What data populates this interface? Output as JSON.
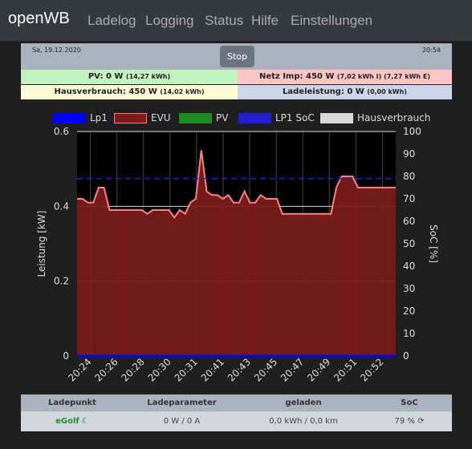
{
  "navbar": {
    "brand": "openWB",
    "items": [
      "Ladelog",
      "Logging",
      "Status",
      "Hilfe",
      "Einstellungen"
    ]
  },
  "header": {
    "date": "Sa, 19.12.2020",
    "time": "20:54",
    "stop_label": "Stop"
  },
  "status": {
    "pv": "PV: 0 W",
    "pv_detail": "(14,27 kWh)",
    "netz": "Netz Imp: 450 W",
    "netz_detail": "(7,02 kWh I) (7,27 kWh E)",
    "haus": "Hausverbrauch: 450 W",
    "haus_detail": "(14,02 kWh)",
    "lade": "Ladeleistung: 0 W",
    "lade_detail": "(0,00 kWh)"
  },
  "colors": {
    "pv_bg": "#c3f2c1",
    "netz_bg": "#ffc5c5",
    "haus_bg": "#fffbd9",
    "lade_bg": "#cdd5e9",
    "evu": "#7d1c1c",
    "evu_line": "#ff8080",
    "lp1": "#0000ff",
    "pv": "#1f8b24",
    "soc": "#2020d0",
    "haus": "#d8d8d8"
  },
  "legend": [
    {
      "label": "Lp1",
      "key": "lp1"
    },
    {
      "label": "EVU",
      "key": "evu"
    },
    {
      "label": "PV",
      "key": "pv"
    },
    {
      "label": "LP1 SoC",
      "key": "soc"
    },
    {
      "label": "Hausverbrauch",
      "key": "haus"
    }
  ],
  "chart_data": {
    "type": "area",
    "ylabel": "Leistung [kW]",
    "y2label": "SoC [%]",
    "ylim": [
      0,
      0.6
    ],
    "y2lim": [
      0,
      100
    ],
    "yticks": [
      "0",
      "0.2",
      "0.4",
      "0.6"
    ],
    "y2ticks": [
      "0",
      "10",
      "20",
      "30",
      "40",
      "50",
      "60",
      "70",
      "80",
      "90",
      "100"
    ],
    "xticks": [
      "20:24",
      "20:26",
      "20:28",
      "20:30",
      "20:31",
      "20:41",
      "20:43",
      "20:45",
      "20:47",
      "20:49",
      "20:51",
      "20:52"
    ],
    "series": [
      {
        "name": "EVU",
        "values": [
          0.42,
          0.42,
          0.41,
          0.41,
          0.45,
          0.45,
          0.39,
          0.39,
          0.39,
          0.39,
          0.39,
          0.39,
          0.39,
          0.38,
          0.39,
          0.39,
          0.39,
          0.39,
          0.37,
          0.39,
          0.38,
          0.41,
          0.42,
          0.55,
          0.44,
          0.43,
          0.43,
          0.42,
          0.43,
          0.41,
          0.41,
          0.44,
          0.41,
          0.41,
          0.43,
          0.42,
          0.42,
          0.42,
          0.38,
          0.38,
          0.38,
          0.38,
          0.38,
          0.38,
          0.38,
          0.38,
          0.38,
          0.38,
          0.45,
          0.48,
          0.48,
          0.48,
          0.45,
          0.45,
          0.45,
          0.45,
          0.45,
          0.45,
          0.45,
          0.45
        ]
      },
      {
        "name": "Lp1",
        "values": [
          0,
          0
        ]
      },
      {
        "name": "LP1 SoC",
        "values": [
          79,
          79
        ]
      }
    ]
  },
  "table": {
    "headers": [
      "Ladepunkt",
      "Ladeparameter",
      "geladen",
      "SoC"
    ],
    "row": {
      "name": "eGolf",
      "params": "0 W / 0 A",
      "geladen": "0,0 kWh / 0,0 km",
      "soc": "79 %"
    }
  }
}
